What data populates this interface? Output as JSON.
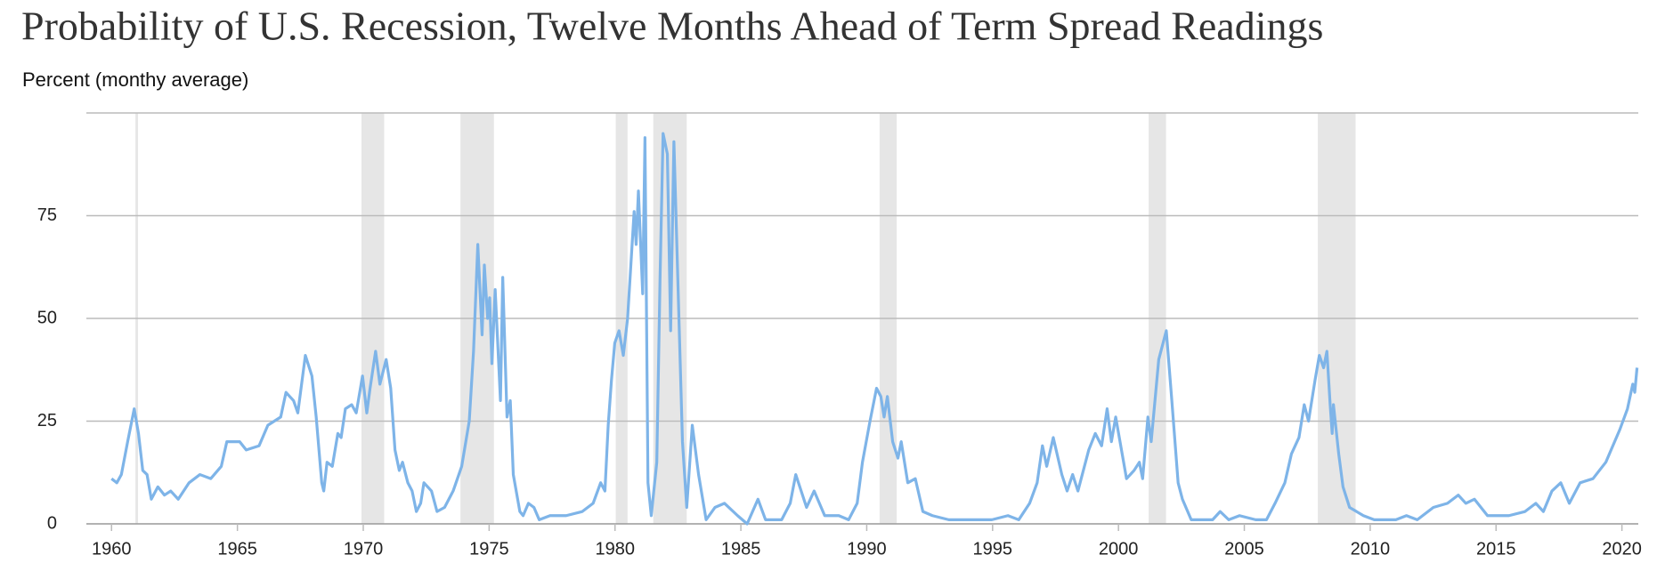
{
  "chart_data": {
    "type": "line",
    "title": "Probability of U.S. Recession, Twelve Months Ahead of Term Spread Readings",
    "y_label": "Percent (monthy average)",
    "xlim": [
      1959,
      2020.65
    ],
    "ylim": [
      0,
      100
    ],
    "xticks": [
      1960,
      1965,
      1970,
      1975,
      1980,
      1985,
      1990,
      1995,
      2000,
      2005,
      2010,
      2015,
      2020
    ],
    "yticks": [
      0,
      25,
      50,
      75
    ],
    "grid": true,
    "recession_color": "#e6e6e6",
    "recessions": [
      {
        "start": 1960.95,
        "end": 1961.05
      },
      {
        "start": 1969.93,
        "end": 1970.83
      },
      {
        "start": 1973.86,
        "end": 1975.19
      },
      {
        "start": 1980.03,
        "end": 1980.5
      },
      {
        "start": 1981.52,
        "end": 1982.85
      },
      {
        "start": 1990.51,
        "end": 1991.19
      },
      {
        "start": 2001.2,
        "end": 2001.89
      },
      {
        "start": 2007.92,
        "end": 2009.42
      }
    ],
    "series": [
      {
        "color": "#7eb4e8",
        "x": [
          1960.0,
          1960.21,
          1960.39,
          1960.64,
          1960.9,
          1961.07,
          1961.24,
          1961.41,
          1961.58,
          1961.84,
          1962.1,
          1962.35,
          1962.65,
          1963.08,
          1963.51,
          1963.94,
          1964.36,
          1964.58,
          1965.09,
          1965.35,
          1965.86,
          1966.21,
          1966.72,
          1966.93,
          1967.23,
          1967.4,
          1967.7,
          1967.96,
          1968.13,
          1968.35,
          1968.43,
          1968.56,
          1968.77,
          1968.99,
          1969.12,
          1969.29,
          1969.54,
          1969.72,
          1969.97,
          1970.14,
          1970.27,
          1970.49,
          1970.66,
          1970.91,
          1971.09,
          1971.26,
          1971.43,
          1971.56,
          1971.77,
          1971.94,
          1972.11,
          1972.28,
          1972.41,
          1972.71,
          1972.93,
          1973.23,
          1973.57,
          1973.91,
          1974.21,
          1974.38,
          1974.55,
          1974.72,
          1974.81,
          1974.94,
          1975.02,
          1975.11,
          1975.24,
          1975.45,
          1975.54,
          1975.71,
          1975.84,
          1975.96,
          1976.22,
          1976.35,
          1976.56,
          1976.78,
          1976.99,
          1977.42,
          1978.06,
          1978.7,
          1979.13,
          1979.43,
          1979.6,
          1979.73,
          1979.86,
          1979.99,
          1980.16,
          1980.33,
          1980.5,
          1980.76,
          1980.84,
          1980.93,
          1981.1,
          1981.19,
          1981.31,
          1981.44,
          1981.66,
          1981.79,
          1981.91,
          1982.08,
          1982.21,
          1982.34,
          1982.47,
          1982.68,
          1982.85,
          1983.07,
          1983.32,
          1983.62,
          1983.97,
          1984.35,
          1984.87,
          1985.25,
          1985.68,
          1985.98,
          1986.62,
          1986.96,
          1987.18,
          1987.61,
          1987.91,
          1988.33,
          1988.89,
          1989.28,
          1989.62,
          1989.83,
          1990.13,
          1990.39,
          1990.56,
          1990.69,
          1990.82,
          1991.03,
          1991.24,
          1991.37,
          1991.63,
          1991.93,
          1992.23,
          1992.61,
          1993.26,
          1994.11,
          1994.97,
          1995.61,
          1996.04,
          1996.47,
          1996.77,
          1996.98,
          1997.15,
          1997.41,
          1997.75,
          1997.96,
          1998.18,
          1998.39,
          1998.82,
          1999.08,
          1999.33,
          1999.55,
          1999.72,
          1999.89,
          2000.32,
          2000.62,
          2000.83,
          2000.96,
          2001.17,
          2001.3,
          2001.6,
          2001.9,
          2002.12,
          2002.37,
          2002.54,
          2002.89,
          2003.74,
          2004.04,
          2004.38,
          2004.81,
          2005.45,
          2005.88,
          2006.22,
          2006.61,
          2006.87,
          2007.17,
          2007.38,
          2007.55,
          2007.81,
          2007.98,
          2008.15,
          2008.28,
          2008.41,
          2008.49,
          2008.54,
          2008.75,
          2008.92,
          2009.18,
          2009.73,
          2010.16,
          2011.02,
          2011.44,
          2011.87,
          2012.51,
          2013.07,
          2013.5,
          2013.8,
          2014.14,
          2014.66,
          2015.51,
          2016.15,
          2016.58,
          2016.88,
          2017.22,
          2017.57,
          2017.91,
          2018.34,
          2018.85,
          2019.36,
          2019.92,
          2020.22,
          2020.43,
          2020.51,
          2020.6
        ],
        "values": [
          11,
          10,
          12,
          20,
          28,
          22,
          13,
          12,
          6,
          9,
          7,
          8,
          6,
          10,
          12,
          11,
          14,
          20,
          20,
          18,
          19,
          24,
          26,
          32,
          30,
          27,
          41,
          36,
          26,
          10,
          8,
          15,
          14,
          22,
          21,
          28,
          29,
          27,
          36,
          27,
          33,
          42,
          34,
          40,
          33,
          18,
          13,
          15,
          10,
          8,
          3,
          5,
          10,
          8,
          3,
          4,
          8,
          14,
          25,
          42,
          68,
          46,
          63,
          50,
          55,
          39,
          57,
          30,
          60,
          26,
          30,
          12,
          3,
          2,
          5,
          4,
          1,
          2,
          2,
          3,
          5,
          10,
          8,
          24,
          35,
          44,
          47,
          41,
          50,
          76,
          68,
          81,
          56,
          94,
          10,
          2,
          15,
          60,
          95,
          90,
          47,
          93,
          65,
          20,
          4,
          24,
          12,
          1,
          4,
          5,
          2,
          0,
          6,
          1,
          1,
          5,
          12,
          4,
          8,
          2,
          2,
          1,
          5,
          15,
          25,
          33,
          31,
          26,
          31,
          20,
          16,
          20,
          10,
          11,
          3,
          2,
          1,
          1,
          1,
          2,
          1,
          5,
          10,
          19,
          14,
          21,
          12,
          8,
          12,
          8,
          18,
          22,
          19,
          28,
          20,
          26,
          11,
          13,
          15,
          11,
          26,
          20,
          40,
          47,
          30,
          10,
          6,
          1,
          1,
          3,
          1,
          2,
          1,
          1,
          5,
          10,
          17,
          21,
          29,
          25,
          35,
          41,
          38,
          42,
          29,
          22,
          29,
          17,
          9,
          4,
          2,
          1,
          1,
          2,
          1,
          4,
          5,
          7,
          5,
          6,
          2,
          2,
          3,
          5,
          3,
          8,
          10,
          5,
          10,
          11,
          15,
          23,
          28,
          34,
          32,
          38
        ]
      }
    ]
  }
}
